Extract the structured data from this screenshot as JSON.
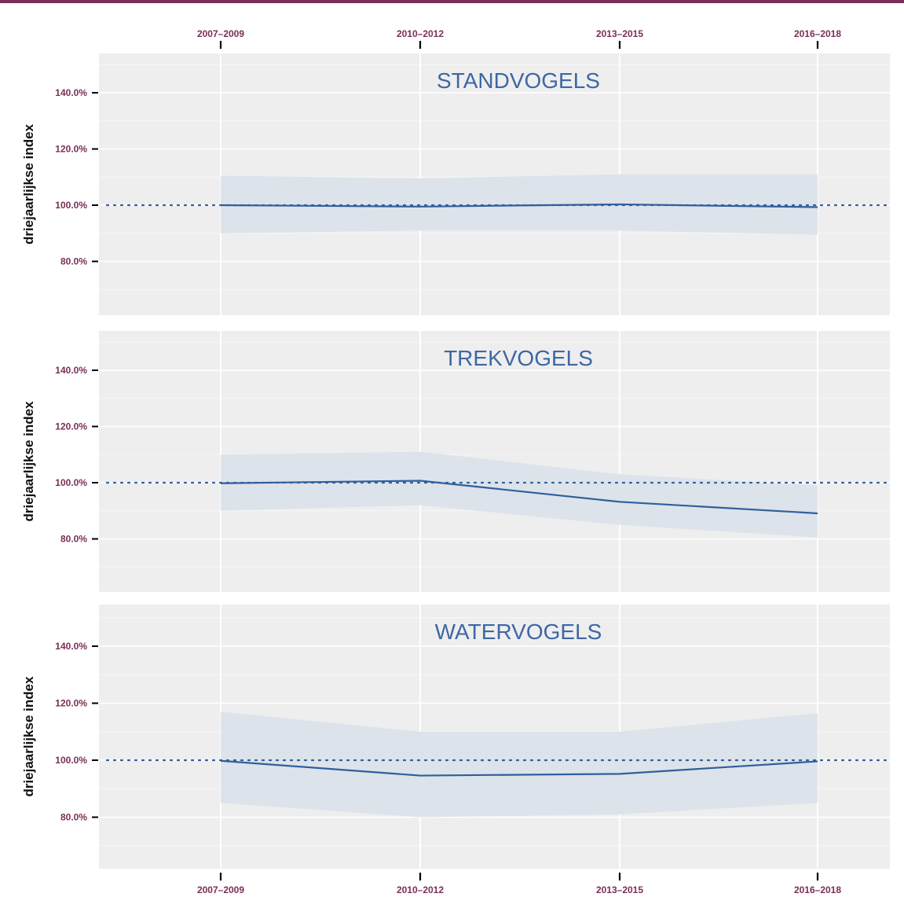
{
  "colors": {
    "accent": "#7a2e59",
    "line": "#2f5f9e",
    "band": "#dde3ea",
    "panel": "#eeeeef",
    "title": "#3f67a3",
    "axis_text": "#7a2e59",
    "label_text": "#111111"
  },
  "chart_data": [
    {
      "type": "line",
      "title": "STANDVOGELS",
      "ylabel": "driejaarlijkse index",
      "x": [
        "2007–2009",
        "2010–2012",
        "2013–2015",
        "2016–2018"
      ],
      "ylim": [
        65,
        152
      ],
      "yticks": [
        "80.0%",
        "100.0%",
        "120.0%",
        "140.0%"
      ],
      "ytick_values": [
        80,
        100,
        120,
        140
      ],
      "reference_line": 100,
      "grid": true,
      "series": [
        {
          "values": [
            100,
            99.5,
            100.3,
            99.3
          ],
          "lower": [
            90,
            91,
            91,
            89.5
          ],
          "upper": [
            110.5,
            109.5,
            111,
            111
          ]
        }
      ]
    },
    {
      "type": "line",
      "title": "TREKVOGELS",
      "ylabel": "driejaarlijkse index",
      "x": [
        "2007–2009",
        "2010–2012",
        "2013–2015",
        "2016–2018"
      ],
      "ylim": [
        65,
        152
      ],
      "yticks": [
        "80.0%",
        "100.0%",
        "120.0%",
        "140.0%"
      ],
      "ytick_values": [
        80,
        100,
        120,
        140
      ],
      "reference_line": 100,
      "grid": true,
      "series": [
        {
          "values": [
            99.8,
            100.7,
            93.2,
            89.1
          ],
          "lower": [
            90,
            92,
            85,
            80.5
          ],
          "upper": [
            110,
            111,
            103,
            99
          ]
        }
      ]
    },
    {
      "type": "line",
      "title": "WATERVOGELS",
      "ylabel": "driejaarlijkse index",
      "x": [
        "2007–2009",
        "2010–2012",
        "2013–2015",
        "2016–2018"
      ],
      "ylim": [
        65,
        152
      ],
      "yticks": [
        "80.0%",
        "100.0%",
        "120.0%",
        "140.0%"
      ],
      "ytick_values": [
        80,
        100,
        120,
        140
      ],
      "reference_line": 100,
      "grid": true,
      "series": [
        {
          "values": [
            99.8,
            94.6,
            95.2,
            99.6
          ],
          "lower": [
            85,
            80,
            81,
            85
          ],
          "upper": [
            117,
            110,
            110,
            116.5
          ]
        }
      ]
    }
  ],
  "top_axis": {
    "ticks": [
      "2007–2009",
      "2010–2012",
      "2013–2015",
      "2016–2018"
    ]
  },
  "bottom_axis": {
    "ticks": [
      "2007–2009",
      "2010–2012",
      "2013–2015",
      "2016–2018"
    ]
  }
}
